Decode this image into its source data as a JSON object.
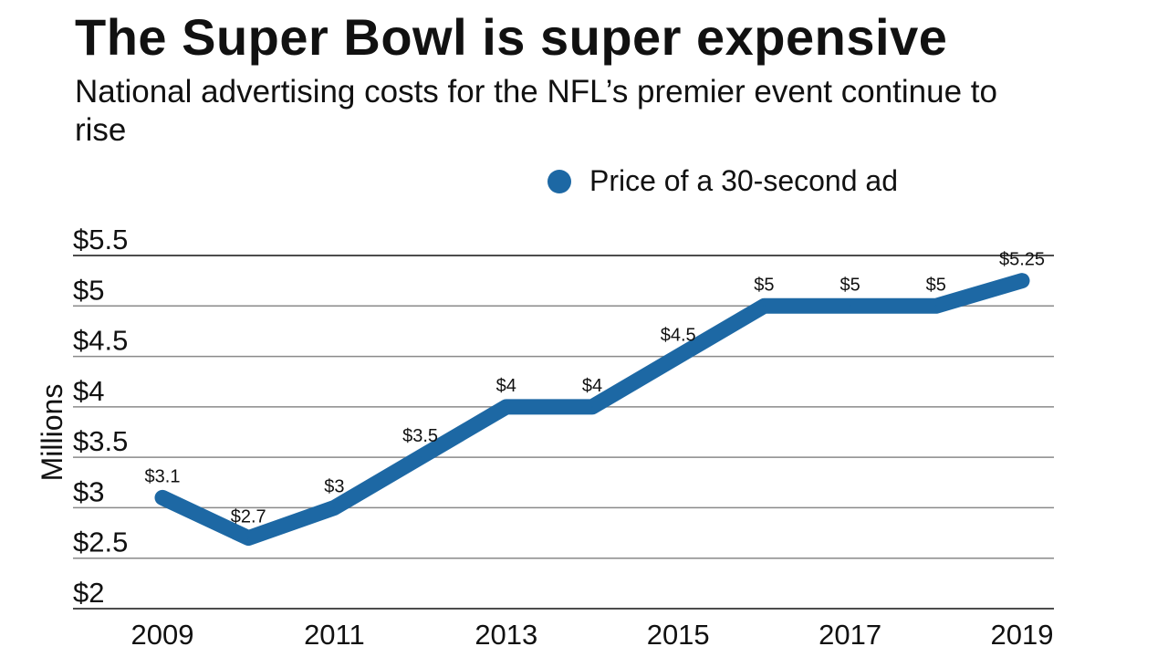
{
  "chart_data": {
    "type": "line",
    "title": "The Super Bowl is super expensive",
    "subtitle": "National advertising costs for the NFL’s premier event continue to rise",
    "ylabel": "Millions",
    "xlabel": "",
    "ylim": [
      2,
      5.5
    ],
    "y_ticks": [
      2,
      2.5,
      3,
      3.5,
      4,
      4.5,
      5,
      5.5
    ],
    "y_tick_labels": [
      "$2",
      "$2.5",
      "$3",
      "$3.5",
      "$4",
      "$4.5",
      "$5",
      "$5.5"
    ],
    "x": [
      2009,
      2010,
      2011,
      2012,
      2013,
      2014,
      2015,
      2016,
      2017,
      2018,
      2019
    ],
    "x_tick_labels": [
      "2009",
      "2011",
      "2013",
      "2015",
      "2017",
      "2019"
    ],
    "x_tick_values": [
      2009,
      2011,
      2013,
      2015,
      2017,
      2019
    ],
    "grid": true,
    "legend_position": "top-right",
    "series": [
      {
        "name": "Price of a 30-second ad",
        "color": "#1d68a4",
        "values": [
          3.1,
          2.7,
          3,
          3.5,
          4,
          4,
          4.5,
          5,
          5,
          5,
          5.25
        ],
        "data_labels": [
          "$3.1",
          "$2.7",
          "$3",
          "$3.5",
          "$4",
          "$4",
          "$4.5",
          "$5",
          "$5",
          "$5",
          "$5.25"
        ]
      }
    ]
  }
}
